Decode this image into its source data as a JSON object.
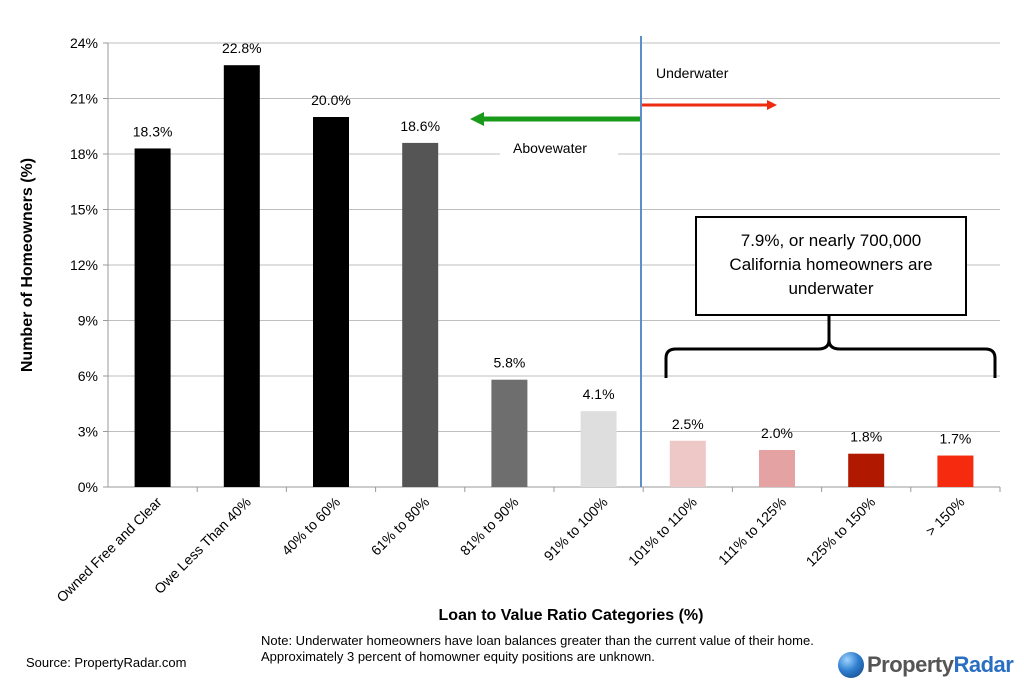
{
  "chart_data": {
    "type": "bar",
    "title": "",
    "xlabel": "Loan to Value Ratio Categories (%)",
    "ylabel": "Number of Homeowners (%)",
    "ylim": [
      0,
      24
    ],
    "yticks": [
      "0%",
      "3%",
      "6%",
      "9%",
      "12%",
      "15%",
      "18%",
      "21%",
      "24%"
    ],
    "categories": [
      "Owned Free and Clear",
      "Owe Less Than 40%",
      "40% to 60%",
      "61% to 80%",
      "81% to 90%",
      "91% to 100%",
      "101% to 110%",
      "111% to 125%",
      "125% to 150%",
      "> 150%"
    ],
    "values": [
      18.3,
      22.8,
      20.0,
      18.6,
      5.8,
      4.1,
      2.5,
      2.0,
      1.8,
      1.7
    ],
    "value_labels": [
      "18.3%",
      "22.8%",
      "20.0%",
      "18.6%",
      "5.8%",
      "4.1%",
      "2.5%",
      "2.0%",
      "1.8%",
      "1.7%"
    ],
    "bar_colors": [
      "#000000",
      "#000000",
      "#000000",
      "#555555",
      "#6e6e6e",
      "#dedede",
      "#eec7c7",
      "#e4a2a2",
      "#b01800",
      "#f52a0f"
    ],
    "annotations": {
      "underwater": "Underwater",
      "abovewater": "Abovewater",
      "callout": [
        "7.9%, or nearly 700,000",
        "California homeowners are",
        "underwater"
      ]
    },
    "colors": {
      "divider": "#5b8fc9",
      "green_arrow": "#1a9a1a",
      "red_arrow": "#ee2a10",
      "grid": "#bfbfbf"
    }
  },
  "footer": {
    "source": "Source: PropertyRadar.com",
    "note": "Note: Underwater homeowners have loan balances greater than the current value of their home. Approximately 3 percent of homowner equity positions are unknown."
  },
  "logo": {
    "text_main": "Property",
    "text_accent": "Radar"
  }
}
